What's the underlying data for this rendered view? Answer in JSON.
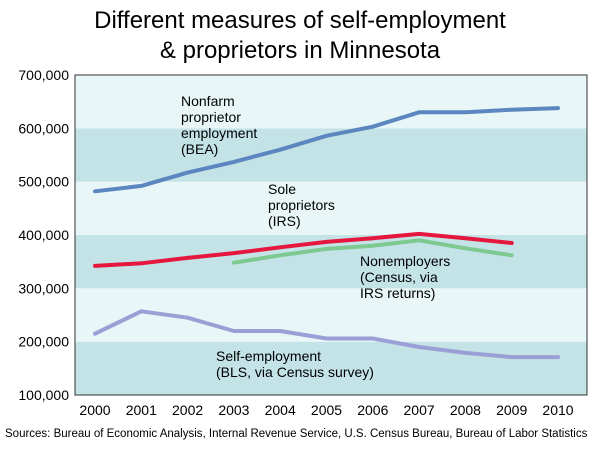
{
  "title_line1": "Different measures of self-employment",
  "title_line2": "& proprietors in Minnesota",
  "source": "Sources: Bureau of Economic Analysis, Internal Revenue Service, U.S. Census Bureau, Bureau of Labor Statistics",
  "colors": {
    "band_dark": "#c3e3e7",
    "band_light": "#e9f6f7",
    "bea": "#5b86c0",
    "irs": "#e5173f",
    "census": "#7dc98f",
    "bls": "#9a9fd6"
  },
  "chart_data": {
    "type": "line",
    "x": [
      2000,
      2001,
      2002,
      2003,
      2004,
      2005,
      2006,
      2007,
      2008,
      2009,
      2010
    ],
    "ylim": [
      100000,
      700000
    ],
    "yticks": [
      100000,
      200000,
      300000,
      400000,
      500000,
      600000,
      700000
    ],
    "ytick_labels": [
      "100,000",
      "200,000",
      "300,000",
      "400,000",
      "500,000",
      "600,000",
      "700,000"
    ],
    "xtick_labels": [
      "2000",
      "2001",
      "2002",
      "2003",
      "2004",
      "2005",
      "2006",
      "2007",
      "2008",
      "2009",
      "2010"
    ],
    "series": [
      {
        "key": "bea",
        "name_lines": [
          "Nonfarm",
          "proprietor",
          "employment",
          "(BEA)"
        ],
        "x": [
          2000,
          2001,
          2002,
          2003,
          2004,
          2005,
          2006,
          2007,
          2008,
          2009,
          2010
        ],
        "values": [
          482000,
          492000,
          517000,
          537000,
          560000,
          586000,
          603000,
          630000,
          630000,
          635000,
          638000
        ]
      },
      {
        "key": "irs",
        "name_lines": [
          "Sole",
          "proprietors",
          "(IRS)"
        ],
        "x": [
          2000,
          2001,
          2002,
          2003,
          2004,
          2005,
          2006,
          2007,
          2008,
          2009
        ],
        "values": [
          342000,
          347000,
          357000,
          366000,
          377000,
          387000,
          394000,
          402000,
          394000,
          385000
        ]
      },
      {
        "key": "census",
        "name_lines": [
          "Nonemployers",
          "(Census, via",
          "IRS returns)"
        ],
        "x": [
          2003,
          2004,
          2005,
          2006,
          2007,
          2008,
          2009
        ],
        "values": [
          348000,
          362000,
          374000,
          380000,
          390000,
          375000,
          362000
        ]
      },
      {
        "key": "bls",
        "name_lines": [
          "Self-employment",
          "(BLS, via Census survey)"
        ],
        "x": [
          2000,
          2001,
          2002,
          2003,
          2004,
          2005,
          2006,
          2007,
          2008,
          2009,
          2010
        ],
        "values": [
          215000,
          257000,
          245000,
          220000,
          220000,
          206000,
          206000,
          190000,
          179000,
          171000,
          171000
        ]
      }
    ]
  }
}
